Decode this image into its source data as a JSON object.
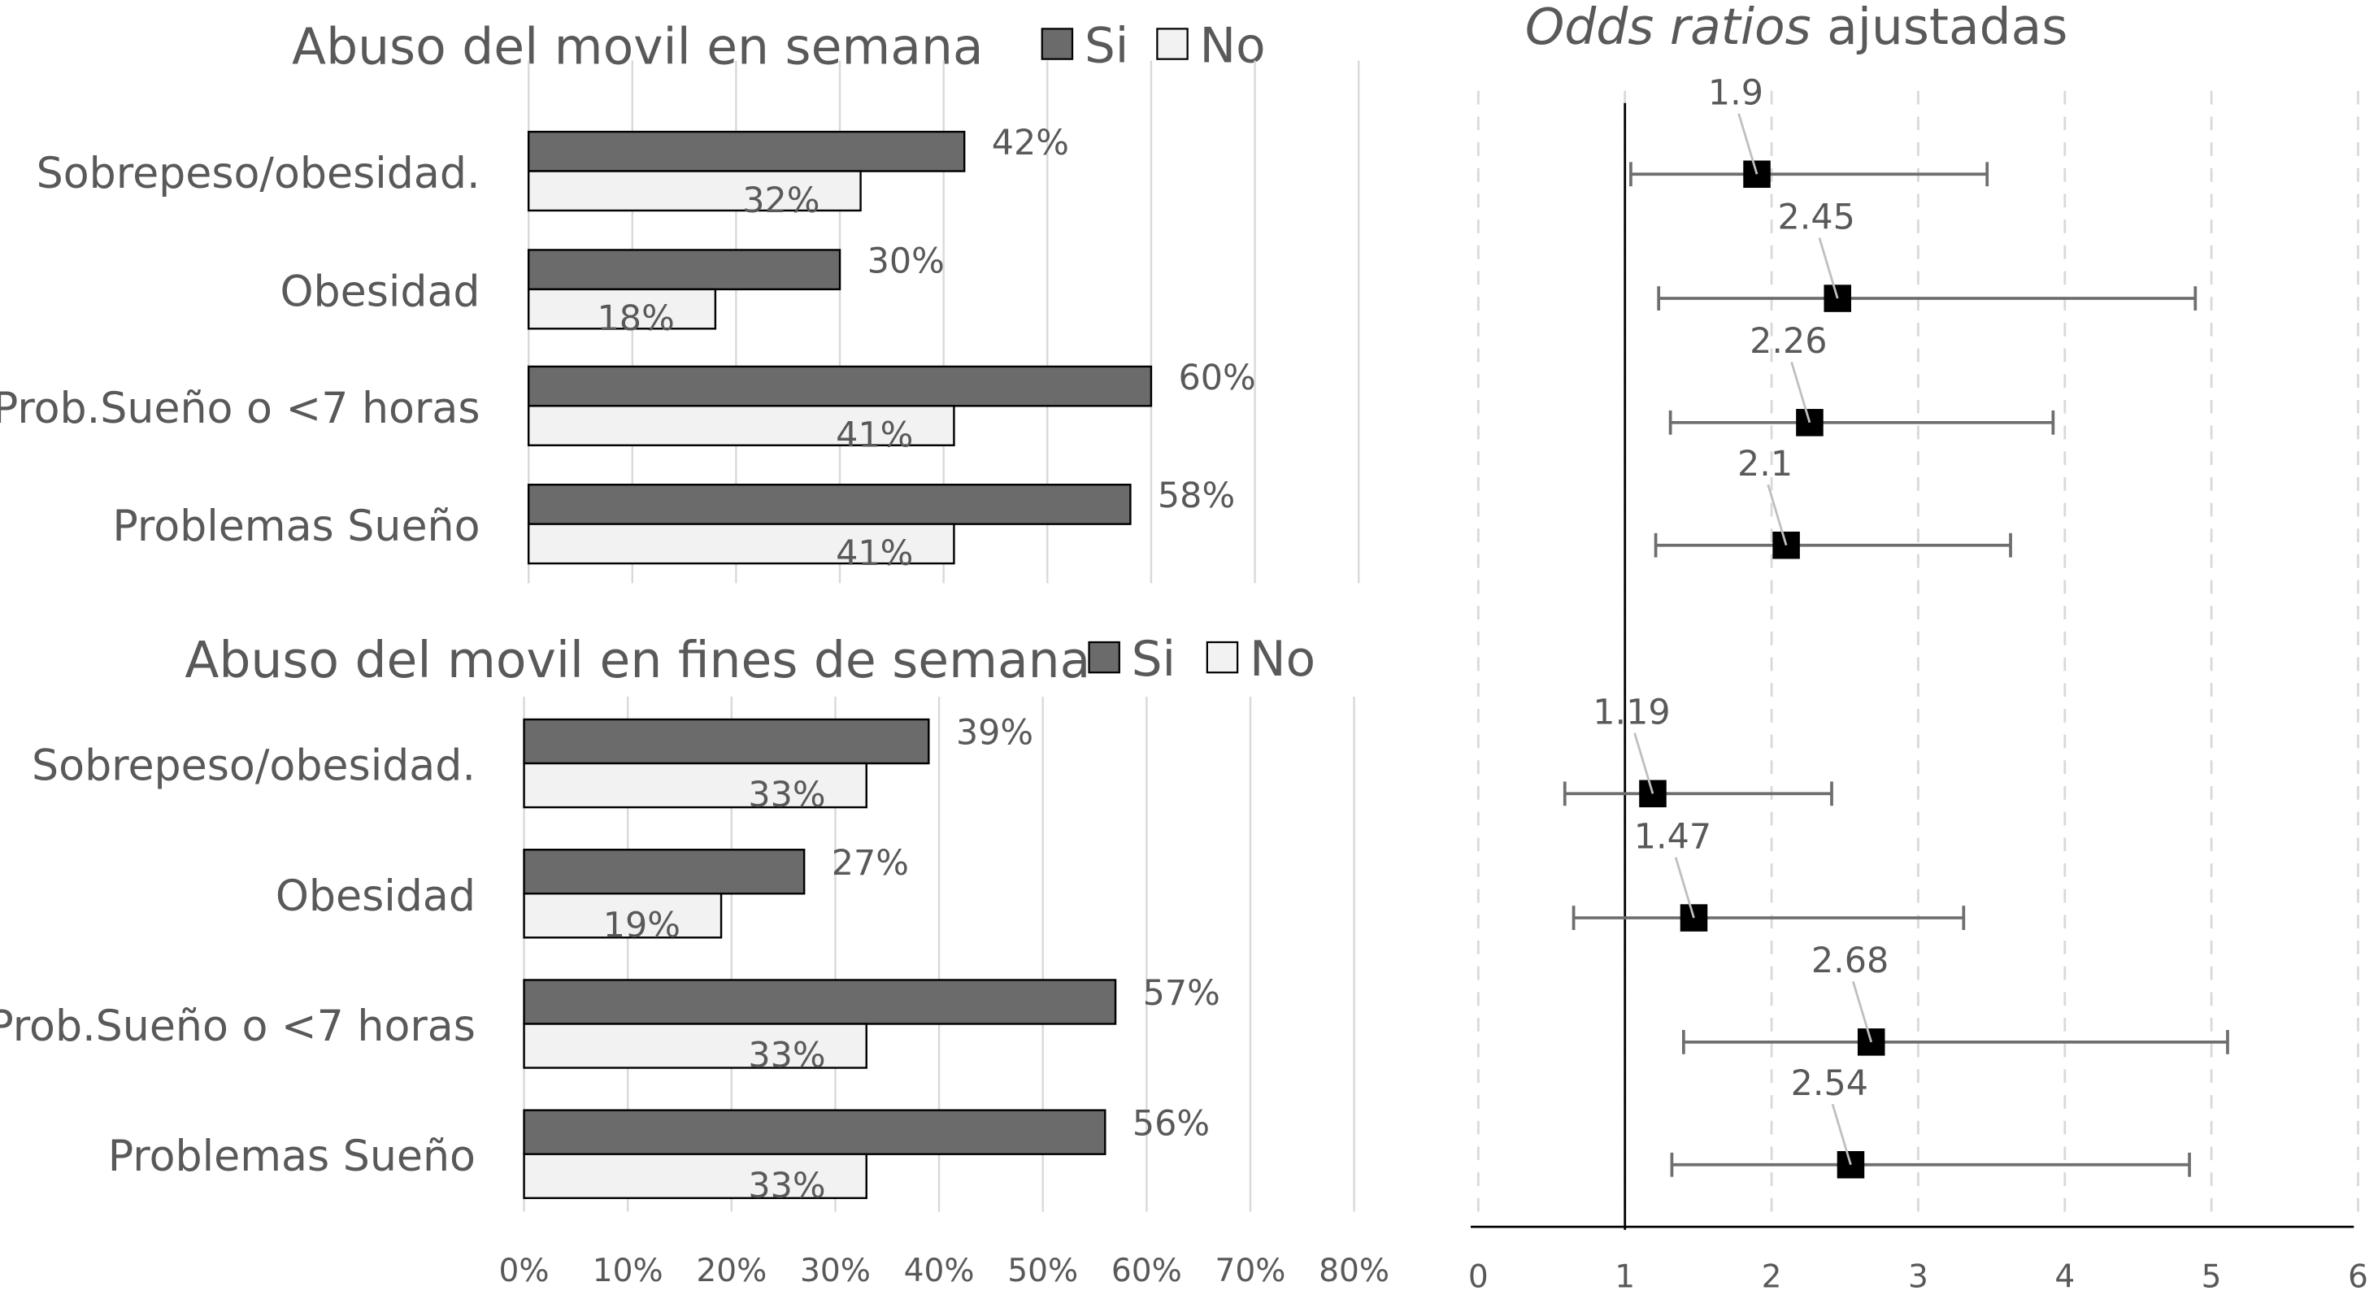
{
  "chart_data": [
    {
      "type": "bar",
      "title": "Abuso del movil en semana",
      "legend": [
        "Si",
        "No"
      ],
      "legend_placement": "top-right",
      "categories": [
        "Sobrepeso/obesidad.",
        "Obesidad",
        "Prob.Sueño o <7 horas",
        "Problemas Sueño"
      ],
      "series": [
        {
          "name": "Si",
          "color": "#6b6b6b",
          "values": [
            42,
            30,
            60,
            58
          ],
          "labels": [
            "42%",
            "30%",
            "60%",
            "58%"
          ]
        },
        {
          "name": "No",
          "color": "#f2f2f2",
          "values": [
            32,
            18,
            41,
            41
          ],
          "labels": [
            "32%",
            "18%",
            "41%",
            "41%"
          ]
        }
      ],
      "xlim": [
        0,
        80
      ],
      "grid": true
    },
    {
      "type": "bar",
      "title": "Abuso del movil en fines de semana",
      "legend": [
        "Si",
        "No"
      ],
      "legend_placement": "top-right",
      "categories": [
        "Sobrepeso/obesidad.",
        "Obesidad",
        "Prob.Sueño o <7 horas",
        "Problemas Sueño"
      ],
      "series": [
        {
          "name": "Si",
          "color": "#6b6b6b",
          "values": [
            39,
            27,
            57,
            56
          ],
          "labels": [
            "39%",
            "27%",
            "57%",
            "56%"
          ]
        },
        {
          "name": "No",
          "color": "#f2f2f2",
          "values": [
            33,
            19,
            33,
            33
          ],
          "labels": [
            "33%",
            "19%",
            "33%",
            "33%"
          ]
        }
      ],
      "xlim": [
        0,
        80
      ],
      "xticks": [
        "0%",
        "10%",
        "20%",
        "30%",
        "40%",
        "50%",
        "60%",
        "70%",
        "80%"
      ],
      "grid": true
    },
    {
      "type": "scatter",
      "title_italic": "Odds ratios",
      "title_rest": " ajustadas",
      "points": [
        {
          "or": 1.9,
          "label": "1.9",
          "ci": [
            1.04,
            3.47
          ]
        },
        {
          "or": 2.45,
          "label": "2.45",
          "ci": [
            1.23,
            4.89
          ]
        },
        {
          "or": 2.26,
          "label": "2.26",
          "ci": [
            1.31,
            3.92
          ]
        },
        {
          "or": 2.1,
          "label": "2.1",
          "ci": [
            1.21,
            3.63
          ]
        },
        {
          "or": 1.19,
          "label": "1.19",
          "ci": [
            0.59,
            2.41
          ]
        },
        {
          "or": 1.47,
          "label": "1.47",
          "ci": [
            0.65,
            3.31
          ]
        },
        {
          "or": 2.68,
          "label": "2.68",
          "ci": [
            1.4,
            5.11
          ]
        },
        {
          "or": 2.54,
          "label": "2.54",
          "ci": [
            1.32,
            4.85
          ]
        }
      ],
      "reference_line": 1,
      "xlim": [
        0,
        6
      ],
      "xticks": [
        "0",
        "1",
        "2",
        "3",
        "4",
        "5",
        "6"
      ],
      "grid": true
    }
  ]
}
